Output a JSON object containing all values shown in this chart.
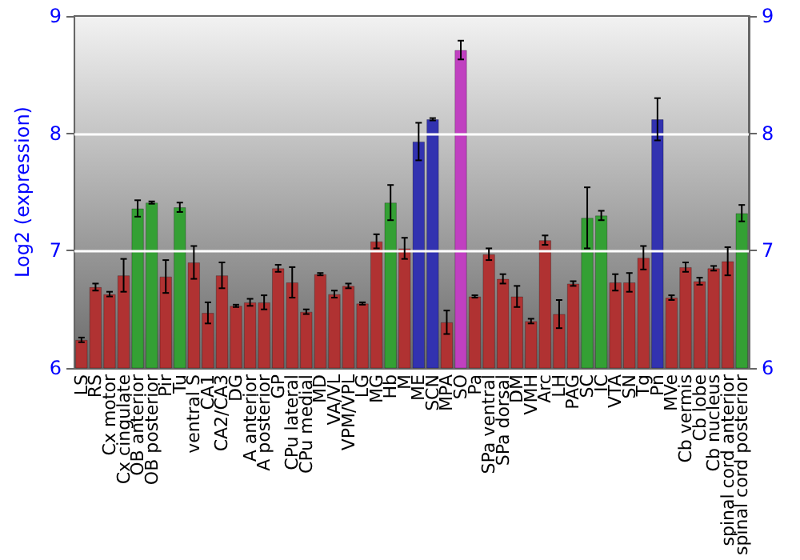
{
  "chart_data": {
    "type": "bar",
    "ylabel": "Log2 (expression)",
    "categories": [
      "LS",
      "RS",
      "Cx motor",
      "Cx cingulate",
      "OB anterior",
      "OB posterior",
      "Pir",
      "Tu",
      "ventral S",
      "CA1",
      "CA2/CA3",
      "DG",
      "A anterior",
      "A posterior",
      "GP",
      "CPu lateral",
      "CPu medial",
      "MD",
      "VA/VL",
      "VPM/VPL",
      "LG",
      "MG",
      "Hb",
      "M",
      "ME",
      "SCN",
      "MPA",
      "SO",
      "Pa",
      "SPa ventral",
      "SPa dorsal",
      "DM",
      "VMH",
      "Arc",
      "LH",
      "PAG",
      "SC",
      "IC",
      "VTA",
      "SN",
      "Tg",
      "Pn",
      "MVe",
      "Cb vermis",
      "Cb lobe",
      "Cb nucleus",
      "spinal cord anterior",
      "spinal cord posterior"
    ],
    "values": [
      6.24,
      6.69,
      6.63,
      6.79,
      7.36,
      7.41,
      6.78,
      7.37,
      6.9,
      6.47,
      6.79,
      6.53,
      6.56,
      6.56,
      6.85,
      6.73,
      6.48,
      6.8,
      6.63,
      6.7,
      6.55,
      7.08,
      7.41,
      7.02,
      7.93,
      8.12,
      6.39,
      8.71,
      6.61,
      6.97,
      6.76,
      6.61,
      6.4,
      7.09,
      6.46,
      6.72,
      7.28,
      7.3,
      6.73,
      6.73,
      6.94,
      8.12,
      6.6,
      6.86,
      6.74,
      6.85,
      6.91,
      7.32
    ],
    "errors": [
      0.02,
      0.03,
      0.02,
      0.14,
      0.07,
      0.01,
      0.14,
      0.04,
      0.14,
      0.09,
      0.11,
      0.01,
      0.03,
      0.06,
      0.03,
      0.13,
      0.02,
      0.01,
      0.03,
      0.02,
      0.01,
      0.06,
      0.15,
      0.09,
      0.16,
      0.01,
      0.1,
      0.08,
      0.01,
      0.05,
      0.04,
      0.09,
      0.02,
      0.04,
      0.12,
      0.02,
      0.26,
      0.04,
      0.07,
      0.08,
      0.1,
      0.18,
      0.02,
      0.04,
      0.03,
      0.02,
      0.12,
      0.07
    ],
    "colors": [
      "#b03232",
      "#b03232",
      "#b03232",
      "#b03232",
      "#34a034",
      "#34a034",
      "#b03232",
      "#34a034",
      "#b03232",
      "#b03232",
      "#b03232",
      "#b03232",
      "#b03232",
      "#b03232",
      "#b03232",
      "#b03232",
      "#b03232",
      "#b03232",
      "#b03232",
      "#b03232",
      "#b03232",
      "#b03232",
      "#34a034",
      "#b03232",
      "#3232b0",
      "#3232b0",
      "#b03232",
      "#c040c0",
      "#b03232",
      "#b03232",
      "#b03232",
      "#b03232",
      "#b03232",
      "#b03232",
      "#b03232",
      "#b03232",
      "#34a034",
      "#34a034",
      "#b03232",
      "#b03232",
      "#b03232",
      "#3232b0",
      "#b03232",
      "#b03232",
      "#b03232",
      "#b03232",
      "#b03232",
      "#34a034"
    ],
    "ylim": [
      6,
      9
    ],
    "yticks": [
      6,
      7,
      8,
      9
    ],
    "y2lim": [
      6,
      9
    ],
    "y2ticks": [
      6,
      7,
      8,
      9
    ],
    "grid": "y"
  }
}
